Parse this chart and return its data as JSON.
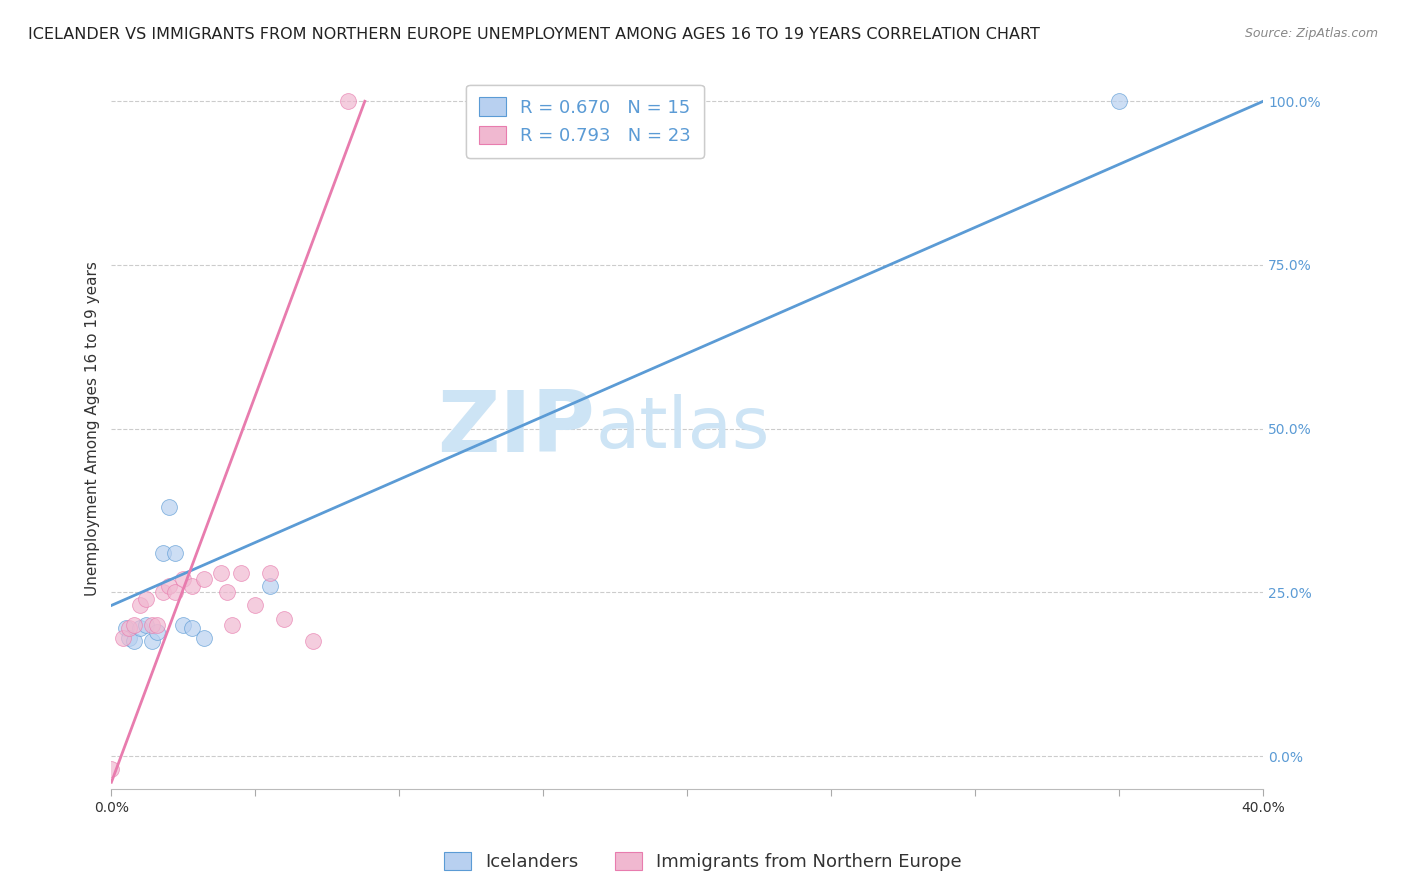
{
  "title": "ICELANDER VS IMMIGRANTS FROM NORTHERN EUROPE UNEMPLOYMENT AMONG AGES 16 TO 19 YEARS CORRELATION CHART",
  "source": "Source: ZipAtlas.com",
  "ylabel": "Unemployment Among Ages 16 to 19 years",
  "xlim": [
    0.0,
    0.4
  ],
  "ylim": [
    -0.05,
    1.05
  ],
  "xtick_vals": [
    0.0,
    0.05,
    0.1,
    0.15,
    0.2,
    0.25,
    0.3,
    0.35,
    0.4
  ],
  "xtick_labels_show": {
    "0.0": "0.0%",
    "0.40": "40.0%"
  },
  "ytick_labels": [
    "0.0%",
    "25.0%",
    "50.0%",
    "75.0%",
    "100.0%"
  ],
  "ytick_vals": [
    0.0,
    0.25,
    0.5,
    0.75,
    1.0
  ],
  "watermark_zip": "ZIP",
  "watermark_atlas": "atlas",
  "legend_items": [
    {
      "label": "R = 0.670   N = 15",
      "color": "#b8d0f0"
    },
    {
      "label": "R = 0.793   N = 23",
      "color": "#f0b8d0"
    }
  ],
  "legend_bottom": [
    {
      "label": "Icelanders",
      "color": "#b8d0f0"
    },
    {
      "label": "Immigrants from Northern Europe",
      "color": "#f0b8d0"
    }
  ],
  "icelanders_x": [
    0.005,
    0.006,
    0.008,
    0.01,
    0.012,
    0.014,
    0.016,
    0.018,
    0.02,
    0.022,
    0.025,
    0.028,
    0.032,
    0.055,
    0.35
  ],
  "icelanders_y": [
    0.195,
    0.18,
    0.175,
    0.195,
    0.2,
    0.175,
    0.19,
    0.31,
    0.38,
    0.31,
    0.2,
    0.195,
    0.18,
    0.26,
    1.0
  ],
  "immigrants_x": [
    0.0,
    0.004,
    0.006,
    0.008,
    0.01,
    0.012,
    0.014,
    0.016,
    0.018,
    0.02,
    0.022,
    0.025,
    0.028,
    0.032,
    0.038,
    0.04,
    0.042,
    0.045,
    0.05,
    0.055,
    0.06,
    0.07,
    0.082
  ],
  "immigrants_y": [
    -0.02,
    0.18,
    0.195,
    0.2,
    0.23,
    0.24,
    0.2,
    0.2,
    0.25,
    0.26,
    0.25,
    0.27,
    0.26,
    0.27,
    0.28,
    0.25,
    0.2,
    0.28,
    0.23,
    0.28,
    0.21,
    0.175,
    1.0
  ],
  "blue_line_color": "#5b9bd5",
  "pink_line_color": "#e87cae",
  "blue_dot_color": "#b8d0f0",
  "pink_dot_color": "#f0b8d0",
  "grid_color": "#cccccc",
  "background_color": "#ffffff",
  "title_fontsize": 11.5,
  "axis_label_fontsize": 11,
  "tick_fontsize": 10,
  "legend_fontsize": 13,
  "watermark_color": "#cde4f5",
  "watermark_fontsize_zip": 62,
  "watermark_fontsize_atlas": 52,
  "blue_line_x0": 0.0,
  "blue_line_y0": 0.23,
  "blue_line_x1": 0.4,
  "blue_line_y1": 1.0,
  "pink_line_x0": 0.0,
  "pink_line_y0": -0.04,
  "pink_line_x1": 0.088,
  "pink_line_y1": 1.0
}
